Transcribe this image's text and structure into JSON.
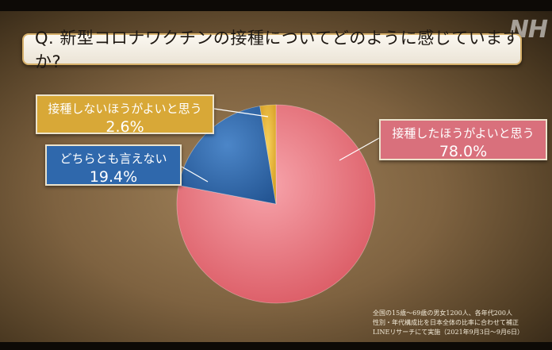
{
  "title": "Q. 新型コロナワクチンの接種についてどのように感じていますか?",
  "logo_text": "NH",
  "chart_data": {
    "type": "pie",
    "title": "Q. 新型コロナワクチンの接種についてどのように感じていますか?",
    "slices": [
      {
        "label": "接種したほうがよいと思う",
        "value": 78.0,
        "value_label": "78.0%",
        "color": "#e0606a"
      },
      {
        "label": "どちらとも言えない",
        "value": 19.4,
        "value_label": "19.4%",
        "color": "#2f68ac"
      },
      {
        "label": "接種しないほうがよいと思う",
        "value": 2.6,
        "value_label": "2.6%",
        "color": "#e0b02c"
      }
    ]
  },
  "footnote": [
    "全国の15歳〜69歳の男女1200人、各年代200人",
    "性別・年代構成比を日本全体の比率に合わせて補正",
    "LINEリサーチにて実施（2021年9月3日〜9月6日）"
  ]
}
